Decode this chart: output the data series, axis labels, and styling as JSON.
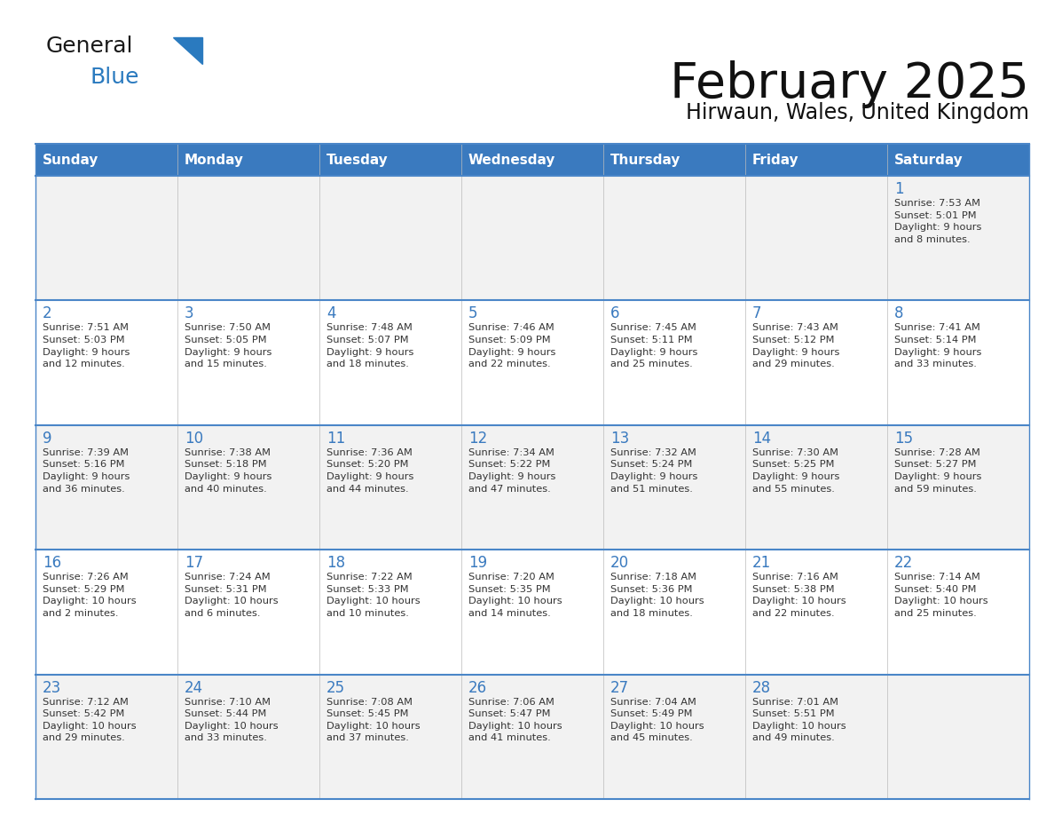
{
  "title": "February 2025",
  "subtitle": "Hirwaun, Wales, United Kingdom",
  "days_of_week": [
    "Sunday",
    "Monday",
    "Tuesday",
    "Wednesday",
    "Thursday",
    "Friday",
    "Saturday"
  ],
  "header_bg": "#3a7abf",
  "header_text": "#ffffff",
  "row_bg_odd": "#f2f2f2",
  "row_bg_even": "#ffffff",
  "cell_border_color": "#4a86c8",
  "day_num_color": "#3a7abf",
  "info_color": "#333333",
  "logo_general_color": "#1a1a1a",
  "logo_blue_color": "#2a7abf",
  "calendar_data": [
    [
      null,
      null,
      null,
      null,
      null,
      null,
      {
        "day": 1,
        "sunrise": "7:53 AM",
        "sunset": "5:01 PM",
        "daylight": "9 hours\nand 8 minutes."
      }
    ],
    [
      {
        "day": 2,
        "sunrise": "7:51 AM",
        "sunset": "5:03 PM",
        "daylight": "9 hours\nand 12 minutes."
      },
      {
        "day": 3,
        "sunrise": "7:50 AM",
        "sunset": "5:05 PM",
        "daylight": "9 hours\nand 15 minutes."
      },
      {
        "day": 4,
        "sunrise": "7:48 AM",
        "sunset": "5:07 PM",
        "daylight": "9 hours\nand 18 minutes."
      },
      {
        "day": 5,
        "sunrise": "7:46 AM",
        "sunset": "5:09 PM",
        "daylight": "9 hours\nand 22 minutes."
      },
      {
        "day": 6,
        "sunrise": "7:45 AM",
        "sunset": "5:11 PM",
        "daylight": "9 hours\nand 25 minutes."
      },
      {
        "day": 7,
        "sunrise": "7:43 AM",
        "sunset": "5:12 PM",
        "daylight": "9 hours\nand 29 minutes."
      },
      {
        "day": 8,
        "sunrise": "7:41 AM",
        "sunset": "5:14 PM",
        "daylight": "9 hours\nand 33 minutes."
      }
    ],
    [
      {
        "day": 9,
        "sunrise": "7:39 AM",
        "sunset": "5:16 PM",
        "daylight": "9 hours\nand 36 minutes."
      },
      {
        "day": 10,
        "sunrise": "7:38 AM",
        "sunset": "5:18 PM",
        "daylight": "9 hours\nand 40 minutes."
      },
      {
        "day": 11,
        "sunrise": "7:36 AM",
        "sunset": "5:20 PM",
        "daylight": "9 hours\nand 44 minutes."
      },
      {
        "day": 12,
        "sunrise": "7:34 AM",
        "sunset": "5:22 PM",
        "daylight": "9 hours\nand 47 minutes."
      },
      {
        "day": 13,
        "sunrise": "7:32 AM",
        "sunset": "5:24 PM",
        "daylight": "9 hours\nand 51 minutes."
      },
      {
        "day": 14,
        "sunrise": "7:30 AM",
        "sunset": "5:25 PM",
        "daylight": "9 hours\nand 55 minutes."
      },
      {
        "day": 15,
        "sunrise": "7:28 AM",
        "sunset": "5:27 PM",
        "daylight": "9 hours\nand 59 minutes."
      }
    ],
    [
      {
        "day": 16,
        "sunrise": "7:26 AM",
        "sunset": "5:29 PM",
        "daylight": "10 hours\nand 2 minutes."
      },
      {
        "day": 17,
        "sunrise": "7:24 AM",
        "sunset": "5:31 PM",
        "daylight": "10 hours\nand 6 minutes."
      },
      {
        "day": 18,
        "sunrise": "7:22 AM",
        "sunset": "5:33 PM",
        "daylight": "10 hours\nand 10 minutes."
      },
      {
        "day": 19,
        "sunrise": "7:20 AM",
        "sunset": "5:35 PM",
        "daylight": "10 hours\nand 14 minutes."
      },
      {
        "day": 20,
        "sunrise": "7:18 AM",
        "sunset": "5:36 PM",
        "daylight": "10 hours\nand 18 minutes."
      },
      {
        "day": 21,
        "sunrise": "7:16 AM",
        "sunset": "5:38 PM",
        "daylight": "10 hours\nand 22 minutes."
      },
      {
        "day": 22,
        "sunrise": "7:14 AM",
        "sunset": "5:40 PM",
        "daylight": "10 hours\nand 25 minutes."
      }
    ],
    [
      {
        "day": 23,
        "sunrise": "7:12 AM",
        "sunset": "5:42 PM",
        "daylight": "10 hours\nand 29 minutes."
      },
      {
        "day": 24,
        "sunrise": "7:10 AM",
        "sunset": "5:44 PM",
        "daylight": "10 hours\nand 33 minutes."
      },
      {
        "day": 25,
        "sunrise": "7:08 AM",
        "sunset": "5:45 PM",
        "daylight": "10 hours\nand 37 minutes."
      },
      {
        "day": 26,
        "sunrise": "7:06 AM",
        "sunset": "5:47 PM",
        "daylight": "10 hours\nand 41 minutes."
      },
      {
        "day": 27,
        "sunrise": "7:04 AM",
        "sunset": "5:49 PM",
        "daylight": "10 hours\nand 45 minutes."
      },
      {
        "day": 28,
        "sunrise": "7:01 AM",
        "sunset": "5:51 PM",
        "daylight": "10 hours\nand 49 minutes."
      },
      null
    ]
  ]
}
